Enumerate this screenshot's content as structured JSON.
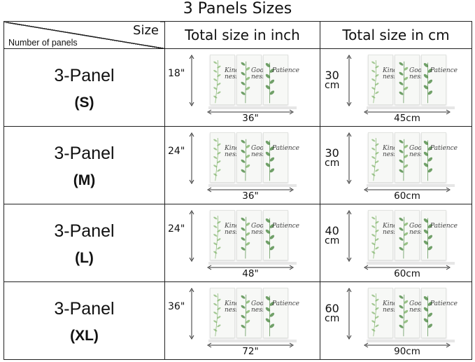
{
  "title": "3 Panels Sizes",
  "header": {
    "size_label": "Size",
    "panels_label": "Number of panels",
    "col_inch": "Total size in inch",
    "col_cm": "Total size in cm"
  },
  "panel_words": [
    "Kind ness",
    "Good ness",
    "Patience"
  ],
  "rows": [
    {
      "name": "3-Panel",
      "size": "(S)",
      "inch": {
        "height": "18\"",
        "width": "36\""
      },
      "cm": {
        "height_value": "30",
        "height_unit": "cm",
        "width": "45cm"
      }
    },
    {
      "name": "3-Panel",
      "size": "(M)",
      "inch": {
        "height": "24\"",
        "width": "36\""
      },
      "cm": {
        "height_value": "30",
        "height_unit": "cm",
        "width": "60cm"
      }
    },
    {
      "name": "3-Panel",
      "size": "(L)",
      "inch": {
        "height": "24\"",
        "width": "48\""
      },
      "cm": {
        "height_value": "40",
        "height_unit": "cm",
        "width": "60cm"
      }
    },
    {
      "name": "3-Panel",
      "size": "(XL)",
      "inch": {
        "height": "36\"",
        "width": "72\""
      },
      "cm": {
        "height_value": "60",
        "height_unit": "cm",
        "width": "90cm"
      }
    }
  ],
  "colors": {
    "border": "#222222",
    "leaf": "#7fb36a",
    "leaf_dark": "#4e8a45"
  }
}
